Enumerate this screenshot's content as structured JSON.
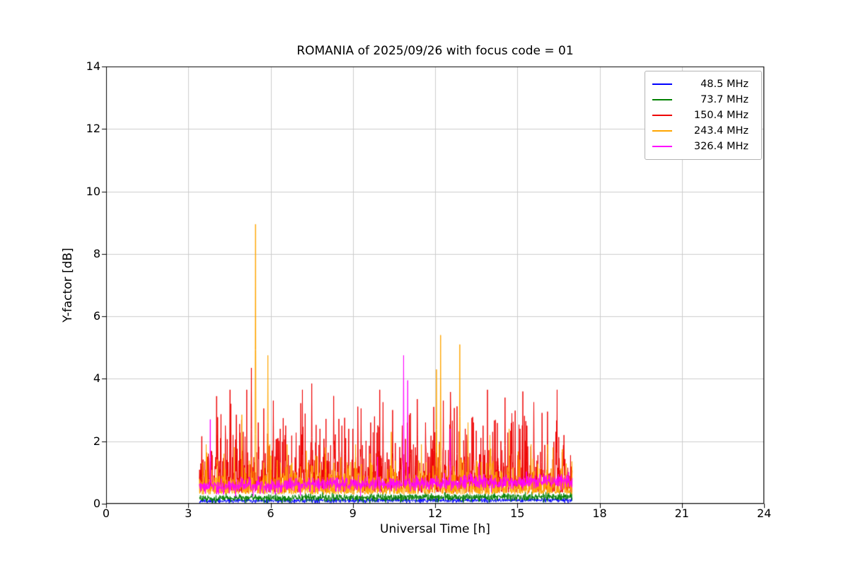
{
  "chart_data": {
    "type": "line",
    "title": "ROMANIA of 2025/09/26 with focus code = 01",
    "xlabel": "Universal Time [h]",
    "ylabel": "Y-factor [dB]",
    "xlim": [
      0,
      24
    ],
    "ylim": [
      0,
      14
    ],
    "xticks": [
      0,
      3,
      6,
      9,
      12,
      15,
      18,
      21,
      24
    ],
    "yticks": [
      0,
      2,
      4,
      6,
      8,
      10,
      12,
      14
    ],
    "grid": true,
    "grid_color": "#cccccc",
    "axis_color": "#000000",
    "legend_position": "upper right",
    "time_range": [
      3.4,
      17.0
    ],
    "sample_step_h": 0.01,
    "series": [
      {
        "name": "48.5 MHz",
        "color": "#0000ff",
        "baseline": 0.09,
        "noise_amp": 0.035,
        "noise_dist": "gauss",
        "trend_per_h": 0.002,
        "cap": 0.3,
        "seed": 11,
        "spikes": []
      },
      {
        "name": "73.7 MHz",
        "color": "#008000",
        "baseline": 0.17,
        "noise_amp": 0.06,
        "noise_dist": "gauss",
        "trend_per_h": 0.004,
        "cap": 0.6,
        "seed": 22,
        "spikes": [
          {
            "x": 7.9,
            "y": 0.45
          },
          {
            "x": 8.25,
            "y": 0.5
          },
          {
            "x": 14.5,
            "y": 0.35
          }
        ]
      },
      {
        "name": "150.4 MHz",
        "color": "#ee0000",
        "baseline": 0.35,
        "noise_amp": 0.55,
        "noise_dist": "exp",
        "trend_per_h": 0.0,
        "cap": 3.3,
        "seed": 33,
        "spikes": [
          {
            "x": 4.05,
            "y": 2.2
          },
          {
            "x": 4.35,
            "y": 2.5
          },
          {
            "x": 4.55,
            "y": 3.2
          },
          {
            "x": 4.75,
            "y": 2.85
          },
          {
            "x": 5.0,
            "y": 2.3
          },
          {
            "x": 5.3,
            "y": 4.35
          },
          {
            "x": 5.55,
            "y": 2.6
          },
          {
            "x": 5.75,
            "y": 3.05
          },
          {
            "x": 6.1,
            "y": 3.3
          },
          {
            "x": 6.35,
            "y": 2.4
          },
          {
            "x": 6.55,
            "y": 2.5
          },
          {
            "x": 7.1,
            "y": 2.3
          },
          {
            "x": 7.5,
            "y": 3.85
          },
          {
            "x": 7.8,
            "y": 2.4
          },
          {
            "x": 8.3,
            "y": 3.45
          },
          {
            "x": 8.6,
            "y": 2.5
          },
          {
            "x": 9.0,
            "y": 2.4
          },
          {
            "x": 9.3,
            "y": 3.05
          },
          {
            "x": 9.65,
            "y": 2.6
          },
          {
            "x": 10.1,
            "y": 3.25
          },
          {
            "x": 10.45,
            "y": 3.0
          },
          {
            "x": 10.8,
            "y": 2.5
          },
          {
            "x": 11.1,
            "y": 2.9
          },
          {
            "x": 11.35,
            "y": 3.35
          },
          {
            "x": 11.65,
            "y": 2.6
          },
          {
            "x": 11.95,
            "y": 3.1
          },
          {
            "x": 12.3,
            "y": 3.3
          },
          {
            "x": 12.55,
            "y": 2.5
          },
          {
            "x": 12.8,
            "y": 2.9
          },
          {
            "x": 13.1,
            "y": 2.4
          },
          {
            "x": 13.4,
            "y": 2.6
          },
          {
            "x": 13.75,
            "y": 2.5
          },
          {
            "x": 14.1,
            "y": 2.3
          },
          {
            "x": 14.55,
            "y": 3.4
          },
          {
            "x": 14.8,
            "y": 2.9
          },
          {
            "x": 15.1,
            "y": 2.4
          },
          {
            "x": 15.35,
            "y": 2.5
          },
          {
            "x": 15.6,
            "y": 3.25
          },
          {
            "x": 15.9,
            "y": 2.4
          },
          {
            "x": 16.1,
            "y": 2.95
          },
          {
            "x": 16.4,
            "y": 2.3
          },
          {
            "x": 16.7,
            "y": 2.2
          }
        ]
      },
      {
        "name": "243.4 MHz",
        "color": "#ffa500",
        "baseline": 0.3,
        "noise_amp": 0.28,
        "noise_dist": "exp",
        "trend_per_h": 0.0,
        "cap": 1.6,
        "seed": 44,
        "spikes": [
          {
            "x": 4.3,
            "y": 1.6
          },
          {
            "x": 4.95,
            "y": 2.85
          },
          {
            "x": 5.45,
            "y": 8.95
          },
          {
            "x": 5.9,
            "y": 4.75
          },
          {
            "x": 6.6,
            "y": 1.9
          },
          {
            "x": 7.3,
            "y": 1.7
          },
          {
            "x": 8.0,
            "y": 1.8
          },
          {
            "x": 9.1,
            "y": 1.9
          },
          {
            "x": 10.4,
            "y": 2.3
          },
          {
            "x": 11.5,
            "y": 1.9
          },
          {
            "x": 12.05,
            "y": 4.3
          },
          {
            "x": 12.2,
            "y": 5.4
          },
          {
            "x": 12.9,
            "y": 5.1
          },
          {
            "x": 13.2,
            "y": 2.6
          },
          {
            "x": 14.0,
            "y": 2.2
          },
          {
            "x": 14.7,
            "y": 2.4
          },
          {
            "x": 15.5,
            "y": 1.9
          },
          {
            "x": 16.3,
            "y": 1.8
          }
        ]
      },
      {
        "name": "326.4 MHz",
        "color": "#ff00ff",
        "baseline": 0.55,
        "noise_amp": 0.11,
        "noise_dist": "gauss",
        "trend_per_h": 0.013,
        "cap": 1.2,
        "seed": 55,
        "spikes": [
          {
            "x": 3.8,
            "y": 2.7
          },
          {
            "x": 9.9,
            "y": 1.5
          },
          {
            "x": 10.85,
            "y": 4.75
          },
          {
            "x": 11.0,
            "y": 3.95
          },
          {
            "x": 12.55,
            "y": 2.4
          },
          {
            "x": 13.6,
            "y": 1.3
          }
        ]
      }
    ]
  }
}
